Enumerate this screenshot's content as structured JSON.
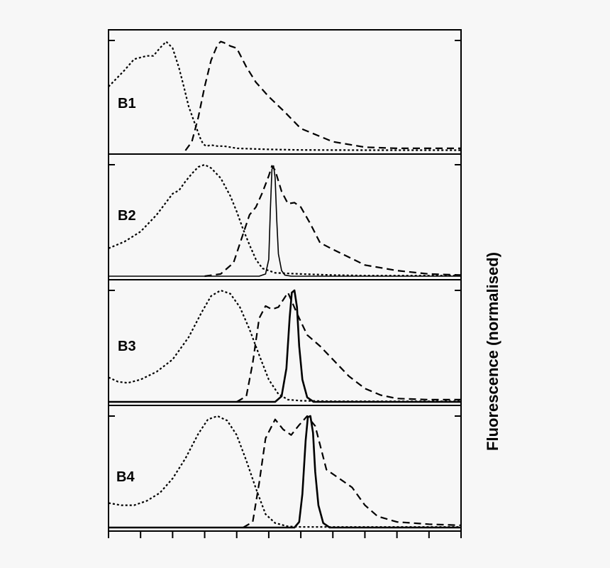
{
  "chart_data": {
    "type": "line",
    "ylabel": "Fluorescence (normalised)",
    "xlabel": "",
    "xlim": [
      0,
      11
    ],
    "ylim": [
      0,
      1
    ],
    "styles": {
      "dotted": "3,3",
      "dashed": "10,6",
      "solid": ""
    },
    "panels": [
      {
        "label": "B1",
        "series": [
          {
            "style": "dotted",
            "width": 2.2,
            "x": [
              0,
              0.5,
              0.8,
              1.2,
              1.4,
              1.6,
              1.8,
              2.0,
              2.2,
              2.35,
              2.5,
              2.7,
              2.85,
              2.95,
              3.05,
              3.2,
              3.4,
              3.6,
              3.8,
              4,
              5,
              6,
              8,
              11
            ],
            "y": [
              0.58,
              0.73,
              0.83,
              0.86,
              0.86,
              0.93,
              0.99,
              0.93,
              0.75,
              0.58,
              0.4,
              0.24,
              0.12,
              0.06,
              0.04,
              0.05,
              0.04,
              0.04,
              0.03,
              0.02,
              0.01,
              0.005,
              0.003,
              0.003
            ]
          },
          {
            "style": "dashed",
            "width": 2.2,
            "x": [
              2.4,
              2.6,
              2.8,
              3.0,
              3.2,
              3.4,
              3.5,
              3.6,
              3.8,
              4.0,
              4.3,
              4.6,
              5.0,
              5.5,
              6,
              7,
              8,
              9,
              10,
              11
            ],
            "y": [
              0,
              0.08,
              0.3,
              0.58,
              0.82,
              0.96,
              0.99,
              0.98,
              0.95,
              0.93,
              0.76,
              0.62,
              0.49,
              0.35,
              0.2,
              0.08,
              0.03,
              0.02,
              0.02,
              0.02
            ]
          }
        ]
      },
      {
        "label": "B2",
        "series": [
          {
            "style": "dotted",
            "width": 2.2,
            "x": [
              0,
              0.5,
              1,
              1.5,
              2,
              2.2,
              2.4,
              2.6,
              2.8,
              3.0,
              3.2,
              3.5,
              3.8,
              4.0,
              4.2,
              4.4,
              4.6,
              4.8,
              5.2,
              6,
              7,
              8,
              9,
              11
            ],
            "y": [
              0.25,
              0.31,
              0.4,
              0.55,
              0.74,
              0.77,
              0.85,
              0.92,
              0.98,
              1.0,
              0.97,
              0.88,
              0.72,
              0.58,
              0.42,
              0.28,
              0.15,
              0.07,
              0.03,
              0.02,
              0.01,
              0.005,
              0.005,
              0.005
            ]
          },
          {
            "style": "dashed",
            "width": 2.2,
            "x": [
              3,
              3.5,
              3.9,
              4.2,
              4.4,
              4.6,
              4.8,
              5.0,
              5.1,
              5.2,
              5.4,
              5.6,
              5.8,
              6,
              6.3,
              6.6,
              7,
              8,
              9,
              10,
              11
            ],
            "y": [
              0,
              0.02,
              0.12,
              0.38,
              0.55,
              0.62,
              0.75,
              0.9,
              0.99,
              0.95,
              0.76,
              0.65,
              0.66,
              0.62,
              0.47,
              0.3,
              0.24,
              0.1,
              0.05,
              0.02,
              0.01
            ]
          },
          {
            "style": "solid",
            "width": 1.6,
            "x": [
              0,
              4.7,
              4.9,
              5.0,
              5.05,
              5.1,
              5.15,
              5.2,
              5.25,
              5.3,
              5.4,
              5.5,
              5.7,
              11
            ],
            "y": [
              0,
              0,
              0.02,
              0.15,
              0.6,
              0.96,
              0.99,
              0.88,
              0.5,
              0.2,
              0.05,
              0.01,
              0,
              0
            ]
          }
        ]
      },
      {
        "label": "B3",
        "series": [
          {
            "style": "dotted",
            "width": 2.2,
            "x": [
              0,
              0.3,
              0.6,
              1,
              1.5,
              2,
              2.5,
              2.9,
              3.2,
              3.5,
              3.8,
              4.1,
              4.4,
              4.7,
              5.0,
              5.3,
              5.6,
              6,
              7,
              8,
              9,
              10,
              11
            ],
            "y": [
              0.22,
              0.18,
              0.17,
              0.2,
              0.27,
              0.38,
              0.58,
              0.8,
              0.95,
              1.0,
              0.97,
              0.85,
              0.65,
              0.42,
              0.2,
              0.07,
              0.02,
              0.01,
              0.005,
              0.005,
              0.005,
              0.005,
              0.005
            ]
          },
          {
            "style": "dashed",
            "width": 2.2,
            "x": [
              4,
              4.3,
              4.5,
              4.7,
              4.9,
              5.1,
              5.3,
              5.6,
              5.9,
              6.2,
              6.6,
              7,
              7.5,
              8,
              8.5,
              9,
              10,
              11
            ],
            "y": [
              0,
              0.05,
              0.35,
              0.75,
              0.86,
              0.83,
              0.85,
              0.98,
              0.78,
              0.6,
              0.5,
              0.38,
              0.23,
              0.12,
              0.06,
              0.03,
              0.02,
              0.02
            ]
          },
          {
            "style": "solid",
            "width": 2.6,
            "x": [
              0,
              5.2,
              5.4,
              5.55,
              5.65,
              5.72,
              5.8,
              5.88,
              5.95,
              6.05,
              6.2,
              6.4,
              11
            ],
            "y": [
              0,
              0,
              0.05,
              0.3,
              0.75,
              0.98,
              1.0,
              0.85,
              0.5,
              0.2,
              0.04,
              0,
              0
            ]
          }
        ]
      },
      {
        "label": "B4",
        "series": [
          {
            "style": "dotted",
            "width": 2.2,
            "x": [
              0,
              0.4,
              0.8,
              1.2,
              1.6,
              2,
              2.4,
              2.8,
              3.1,
              3.4,
              3.7,
              4.0,
              4.3,
              4.6,
              4.9,
              5.2,
              5.6,
              6,
              7,
              8,
              9,
              10,
              11
            ],
            "y": [
              0.22,
              0.2,
              0.2,
              0.24,
              0.31,
              0.44,
              0.62,
              0.84,
              0.97,
              1.0,
              0.96,
              0.83,
              0.6,
              0.35,
              0.12,
              0.04,
              0.01,
              0.005,
              0.005,
              0.005,
              0.005,
              0.005,
              0.005
            ]
          },
          {
            "style": "dashed",
            "width": 2.2,
            "x": [
              4.2,
              4.5,
              4.7,
              4.9,
              5.2,
              5.45,
              5.7,
              5.95,
              6.2,
              6.45,
              6.8,
              7.2,
              7.6,
              8.0,
              8.4,
              9,
              10,
              11
            ],
            "y": [
              0,
              0.05,
              0.4,
              0.8,
              0.97,
              0.88,
              0.83,
              0.92,
              1.0,
              0.91,
              0.52,
              0.44,
              0.36,
              0.2,
              0.1,
              0.05,
              0.03,
              0.02
            ]
          },
          {
            "style": "solid",
            "width": 2.6,
            "x": [
              0,
              5.8,
              5.95,
              6.05,
              6.15,
              6.22,
              6.3,
              6.38,
              6.45,
              6.55,
              6.7,
              6.9,
              11
            ],
            "y": [
              0,
              0,
              0.05,
              0.3,
              0.78,
              0.99,
              1.0,
              0.85,
              0.5,
              0.2,
              0.04,
              0,
              0
            ]
          }
        ]
      }
    ]
  }
}
